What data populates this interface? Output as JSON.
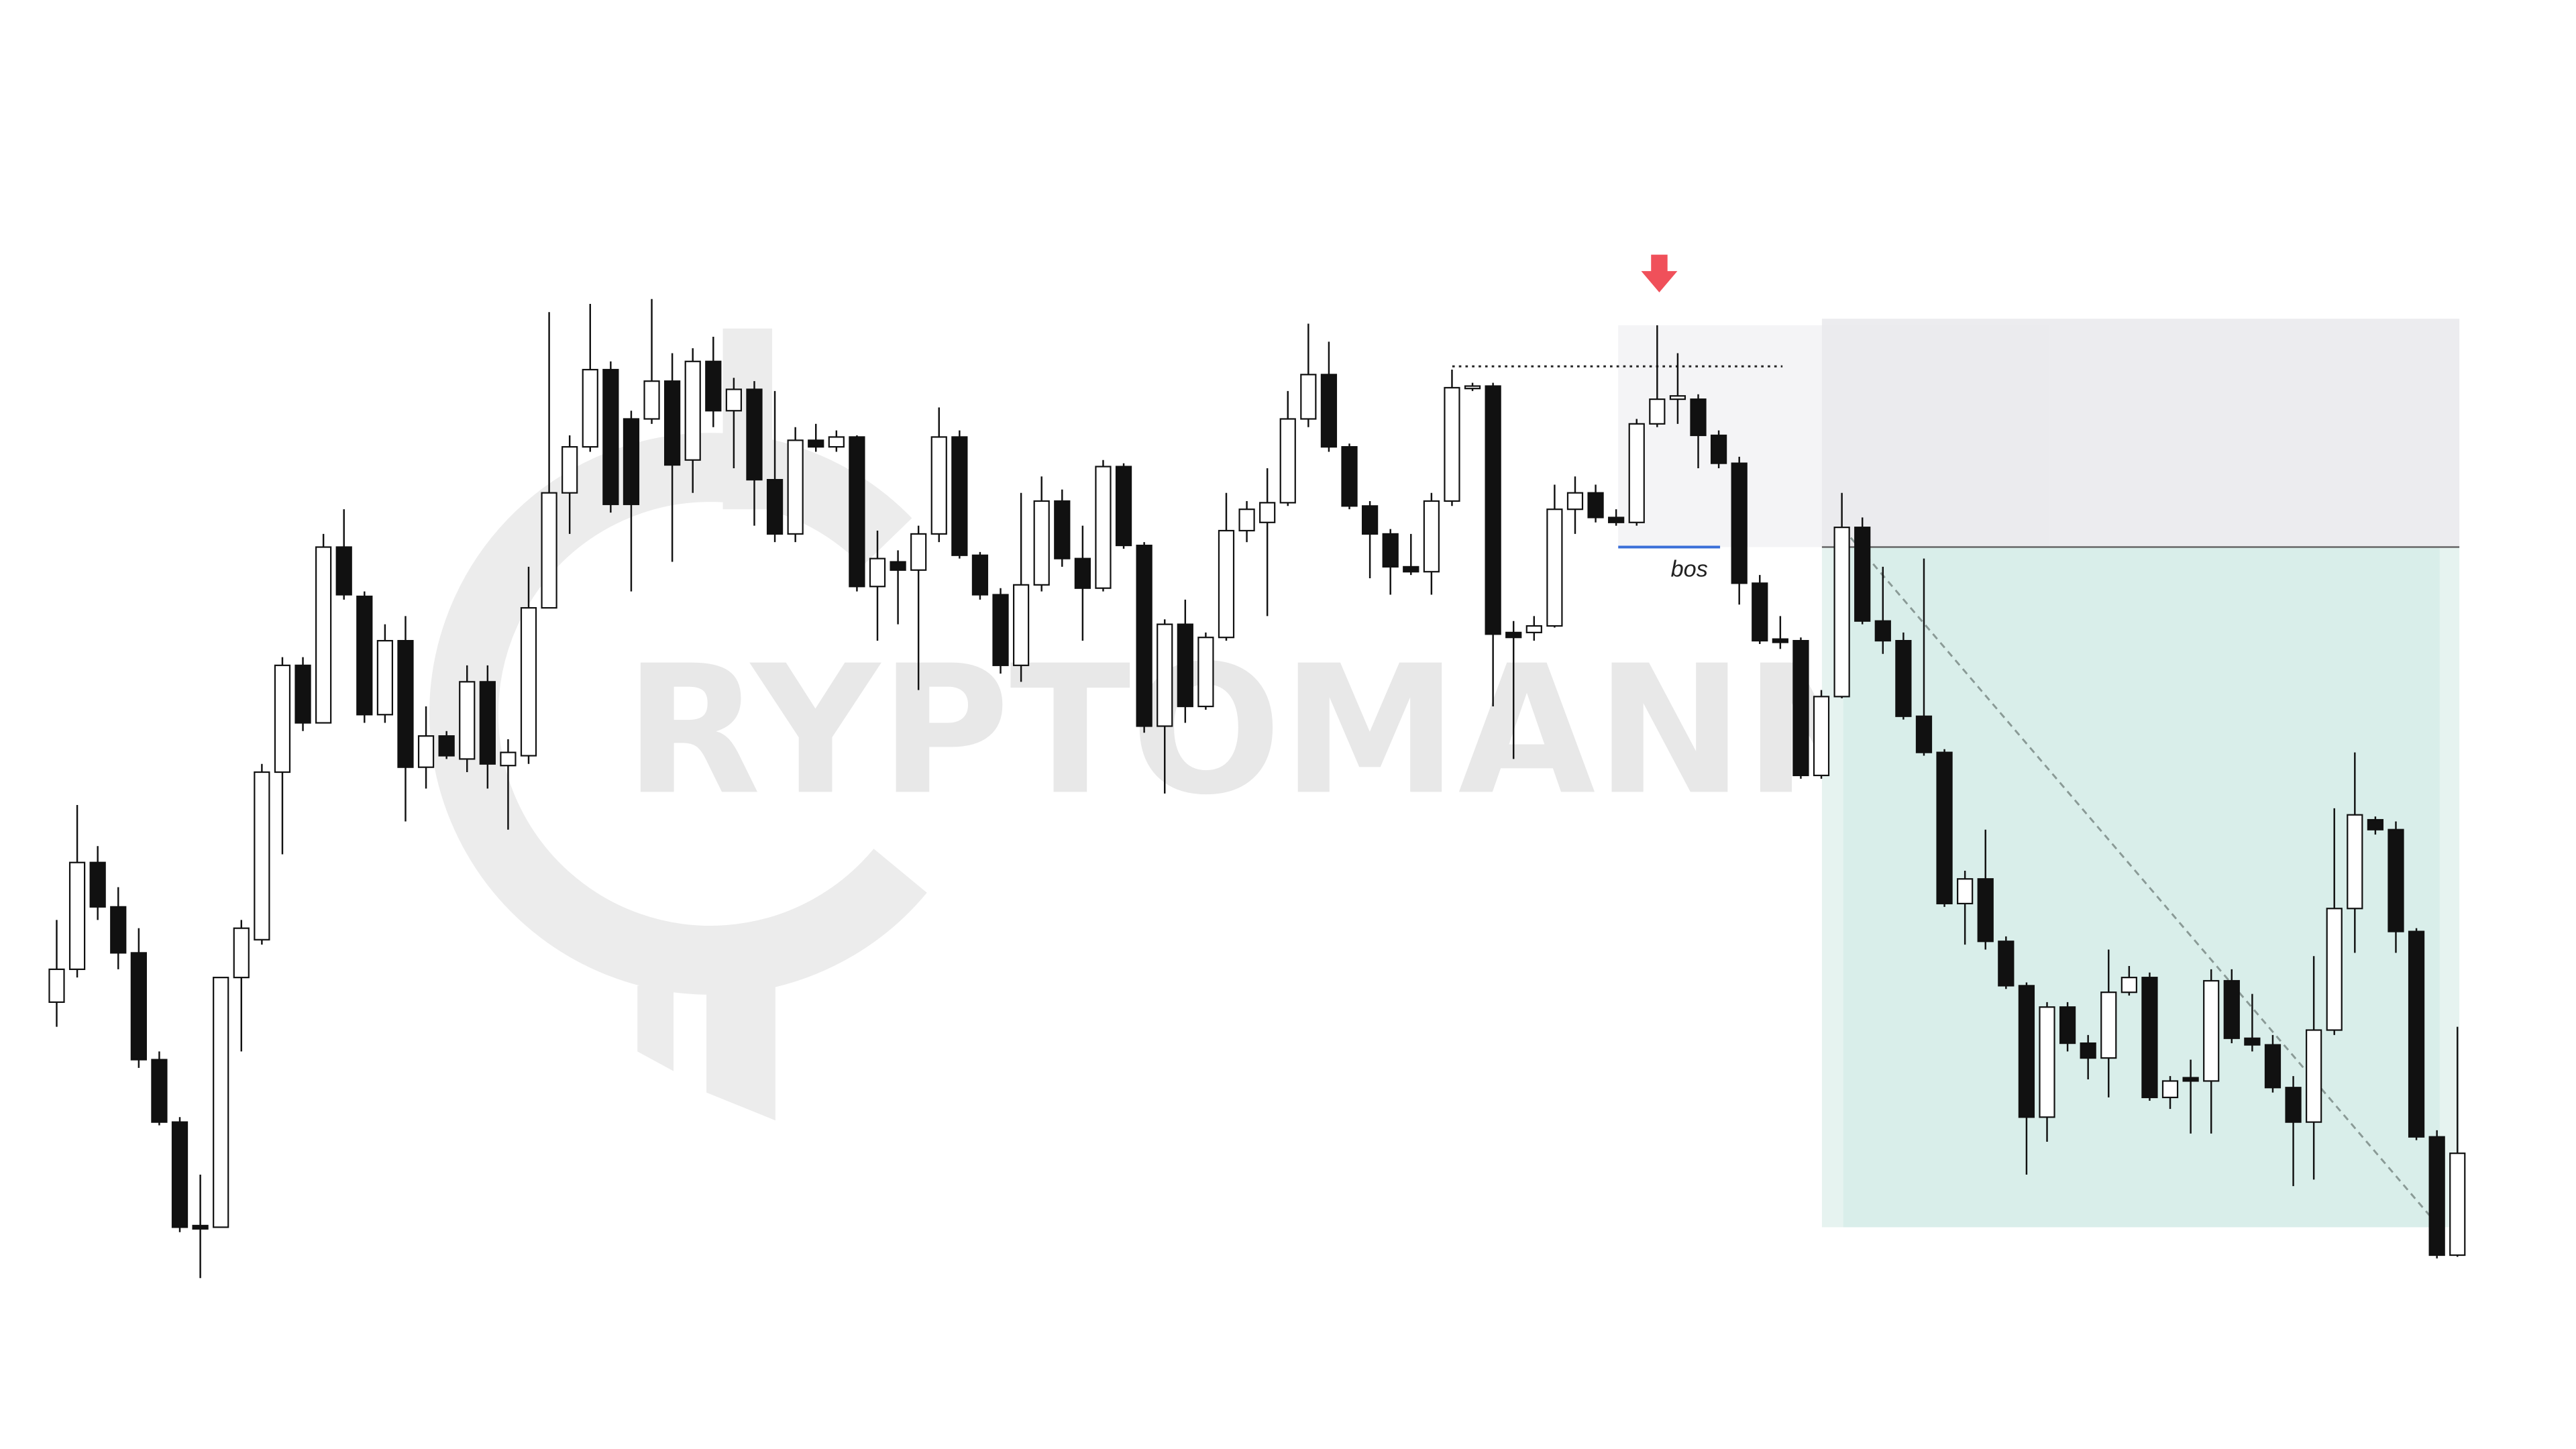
{
  "chart_data": {
    "type": "candlestick",
    "watermark": "RYPTOMANNN ™",
    "annotation": "bos",
    "up_color": "#ffffff",
    "down_color": "#111111",
    "ylim": [
      18,
      900
    ],
    "open": [
      290,
      310,
      375,
      348,
      320,
      255,
      217,
      154,
      153,
      305,
      328,
      430,
      495,
      460,
      567,
      537,
      465,
      510,
      433,
      452,
      438,
      485,
      434,
      440,
      530,
      600,
      628,
      675,
      645,
      645,
      668,
      620,
      680,
      650,
      663,
      608,
      575,
      632,
      628,
      634,
      543,
      558,
      553,
      575,
      634,
      562,
      538,
      495,
      544,
      595,
      560,
      542,
      616,
      568,
      458,
      520,
      470,
      512,
      577,
      582,
      594,
      645,
      672,
      628,
      592,
      575,
      555,
      552,
      595,
      664,
      665,
      515,
      515,
      519,
      590,
      600,
      585,
      582,
      642,
      657,
      657,
      635,
      618,
      545,
      511,
      510,
      428,
      476,
      579,
      522,
      510,
      464,
      442,
      350,
      365,
      327,
      300,
      220,
      287,
      265,
      256,
      296,
      305,
      232,
      244,
      242,
      303,
      268,
      264,
      238,
      217,
      273,
      347,
      401,
      395,
      333,
      208,
      136
    ],
    "high": [
      340,
      410,
      385,
      360,
      335,
      260,
      220,
      185,
      305,
      340,
      435,
      500,
      500,
      575,
      590,
      540,
      520,
      525,
      470,
      455,
      495,
      495,
      450,
      555,
      710,
      635,
      715,
      680,
      650,
      718,
      685,
      688,
      695,
      670,
      668,
      662,
      640,
      642,
      638,
      635,
      577,
      565,
      580,
      652,
      638,
      564,
      542,
      600,
      610,
      602,
      580,
      620,
      618,
      570,
      523,
      535,
      515,
      600,
      595,
      615,
      662,
      703,
      692,
      630,
      595,
      578,
      575,
      600,
      675,
      667,
      667,
      522,
      525,
      605,
      610,
      605,
      590,
      645,
      702,
      685,
      660,
      638,
      622,
      550,
      525,
      512,
      480,
      600,
      585,
      555,
      515,
      560,
      444,
      370,
      395,
      330,
      302,
      290,
      290,
      270,
      322,
      312,
      308,
      245,
      255,
      310,
      310,
      295,
      270,
      245,
      318,
      408,
      442,
      403,
      400,
      335,
      212,
      275
    ],
    "low": [
      275,
      305,
      340,
      310,
      250,
      215,
      150,
      122,
      153,
      260,
      325,
      380,
      455,
      460,
      535,
      460,
      460,
      400,
      420,
      438,
      430,
      420,
      395,
      435,
      530,
      575,
      625,
      588,
      540,
      642,
      558,
      600,
      640,
      615,
      580,
      570,
      570,
      625,
      625,
      540,
      510,
      520,
      480,
      570,
      560,
      535,
      490,
      485,
      540,
      555,
      510,
      540,
      566,
      454,
      417,
      460,
      468,
      510,
      570,
      525,
      592,
      640,
      625,
      590,
      548,
      538,
      550,
      538,
      592,
      662,
      470,
      438,
      510,
      518,
      575,
      582,
      580,
      580,
      640,
      642,
      615,
      615,
      532,
      508,
      505,
      426,
      426,
      475,
      520,
      502,
      462,
      440,
      348,
      325,
      322,
      298,
      185,
      205,
      260,
      243,
      232,
      294,
      230,
      225,
      210,
      210,
      265,
      260,
      235,
      178,
      182,
      270,
      320,
      392,
      320,
      206,
      134,
      135
    ],
    "close": [
      310,
      375,
      348,
      320,
      255,
      217,
      153,
      152,
      305,
      335,
      430,
      495,
      460,
      567,
      538,
      465,
      510,
      433,
      452,
      440,
      485,
      435,
      442,
      530,
      600,
      628,
      675,
      593,
      593,
      668,
      617,
      680,
      650,
      663,
      608,
      575,
      632,
      628,
      634,
      543,
      560,
      553,
      575,
      634,
      562,
      538,
      495,
      544,
      595,
      560,
      542,
      616,
      568,
      458,
      520,
      470,
      512,
      577,
      590,
      594,
      645,
      672,
      628,
      592,
      575,
      555,
      552,
      595,
      664,
      665,
      514,
      512,
      519,
      590,
      600,
      585,
      582,
      642,
      657,
      659,
      635,
      618,
      545,
      510,
      509,
      428,
      476,
      579,
      522,
      510,
      464,
      442,
      350,
      365,
      327,
      300,
      220,
      287,
      265,
      256,
      296,
      305,
      232,
      242,
      242,
      303,
      268,
      264,
      238,
      217,
      273,
      347,
      404,
      395,
      333,
      208,
      136,
      198
    ]
  }
}
